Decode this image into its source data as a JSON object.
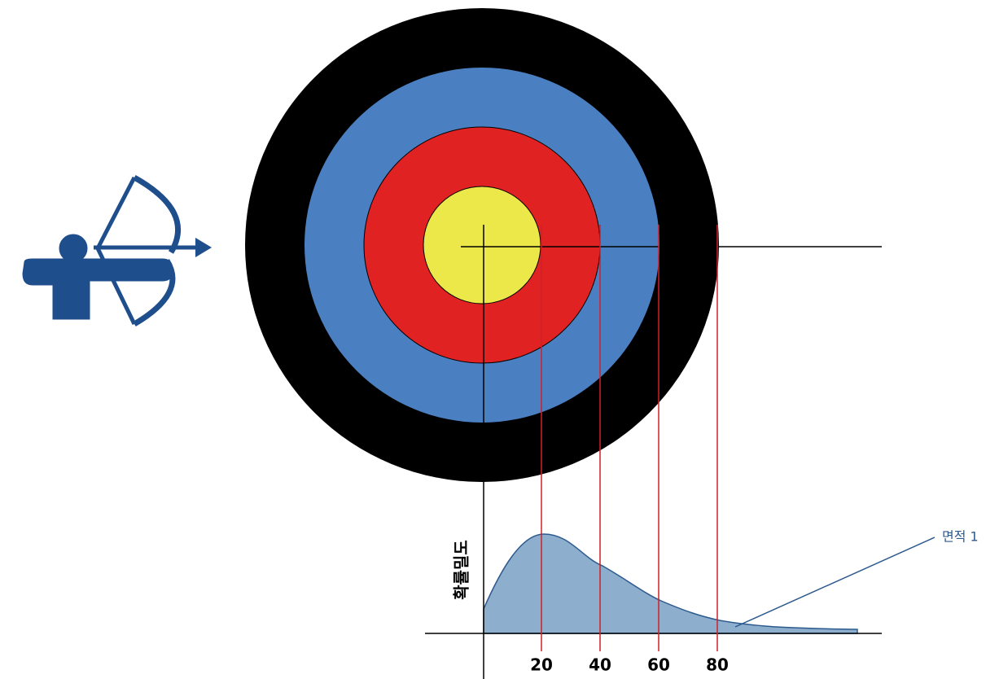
{
  "axis": {
    "y_label": "확률밀도",
    "ticks": [
      20,
      40,
      60,
      80
    ]
  },
  "annotation": "면적 1"
}
